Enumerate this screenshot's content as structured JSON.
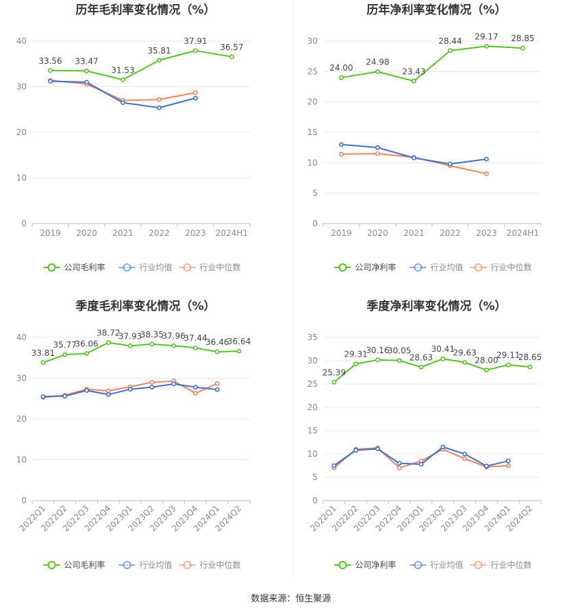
{
  "source_label": "数据来源：恒生聚源",
  "colors": {
    "company": "#52c41a",
    "industry_avg": "#3a6fd8",
    "industry_median": "#f08357"
  },
  "chart_data": [
    {
      "type": "line",
      "title": "历年毛利率变化情况（%）",
      "categories": [
        "2019",
        "2020",
        "2021",
        "2022",
        "2023",
        "2024H1"
      ],
      "ylim": [
        0,
        40
      ],
      "yticks": [
        0,
        10,
        20,
        30,
        40
      ],
      "rotate_x": false,
      "legend_position": "bottom",
      "series": [
        {
          "name": "公司毛利率",
          "values": [
            33.56,
            33.47,
            31.53,
            35.81,
            37.91,
            36.57
          ],
          "labels": [
            "33.56",
            "33.47",
            "31.53",
            "35.81",
            "37.91",
            "36.57"
          ]
        },
        {
          "name": "行业均值",
          "values": [
            31.2,
            31.0,
            26.5,
            25.4,
            27.5,
            null
          ]
        },
        {
          "name": "行业中位数",
          "values": [
            31.4,
            30.6,
            27.0,
            27.2,
            28.7,
            null
          ]
        }
      ]
    },
    {
      "type": "line",
      "title": "历年净利率变化情况（%）",
      "categories": [
        "2019",
        "2020",
        "2021",
        "2022",
        "2023",
        "2024H1"
      ],
      "ylim": [
        0,
        30
      ],
      "yticks": [
        0,
        5,
        10,
        15,
        20,
        25,
        30
      ],
      "rotate_x": false,
      "legend_position": "bottom",
      "series": [
        {
          "name": "公司净利率",
          "values": [
            24.0,
            24.98,
            23.43,
            28.44,
            29.17,
            28.85
          ],
          "labels": [
            "24.00",
            "24.98",
            "23.43",
            "28.44",
            "29.17",
            "28.85"
          ]
        },
        {
          "name": "行业均值",
          "values": [
            13.0,
            12.5,
            10.8,
            9.8,
            10.6,
            null
          ]
        },
        {
          "name": "行业中位数",
          "values": [
            11.4,
            11.5,
            10.9,
            9.5,
            8.2,
            null
          ]
        }
      ]
    },
    {
      "type": "line",
      "title": "季度毛利率变化情况（%）",
      "categories": [
        "2022Q1",
        "2022Q2",
        "2022Q3",
        "2022Q4",
        "2023Q1",
        "2023Q2",
        "2023Q3",
        "2023Q4",
        "2024Q1",
        "2024Q2"
      ],
      "ylim": [
        0,
        40
      ],
      "yticks": [
        0,
        10,
        20,
        30,
        40
      ],
      "rotate_x": true,
      "legend_position": "bottom",
      "series": [
        {
          "name": "公司毛利率",
          "values": [
            33.81,
            35.77,
            36.06,
            38.72,
            37.93,
            38.35,
            37.96,
            37.44,
            36.46,
            36.64
          ],
          "labels": [
            "33.81",
            "35.77",
            "36.06",
            "38.72",
            "37.93",
            "38.35",
            "37.96",
            "37.44",
            "36.46",
            "36.64"
          ]
        },
        {
          "name": "行业均值",
          "values": [
            25.5,
            25.6,
            27.0,
            26.0,
            27.3,
            27.8,
            28.6,
            27.8,
            27.2,
            null
          ]
        },
        {
          "name": "行业中位数",
          "values": [
            25.3,
            25.8,
            27.3,
            26.9,
            27.9,
            29.0,
            29.3,
            26.3,
            28.7,
            null
          ]
        }
      ]
    },
    {
      "type": "line",
      "title": "季度净利率变化情况（%）",
      "categories": [
        "2022Q1",
        "2022Q2",
        "2022Q3",
        "2022Q4",
        "2023Q1",
        "2023Q2",
        "2023Q3",
        "2023Q4",
        "2024Q1",
        "2024Q2"
      ],
      "ylim": [
        0,
        35
      ],
      "yticks": [
        0,
        5,
        10,
        15,
        20,
        25,
        30,
        35
      ],
      "rotate_x": true,
      "legend_position": "bottom",
      "series": [
        {
          "name": "公司净利率",
          "values": [
            25.39,
            29.31,
            30.16,
            30.05,
            28.63,
            30.41,
            29.63,
            28.0,
            29.11,
            28.65
          ],
          "labels": [
            "25.39",
            "29.31",
            "30.16",
            "30.05",
            "28.63",
            "30.41",
            "29.63",
            "28.00",
            "29.11",
            "28.65"
          ]
        },
        {
          "name": "行业均值",
          "values": [
            7.5,
            10.8,
            11.1,
            8.0,
            7.8,
            11.5,
            10.0,
            7.4,
            8.5,
            null
          ]
        },
        {
          "name": "行业中位数",
          "values": [
            7.0,
            11.0,
            11.3,
            7.0,
            8.5,
            11.0,
            9.0,
            7.2,
            7.5,
            null
          ]
        }
      ]
    }
  ]
}
